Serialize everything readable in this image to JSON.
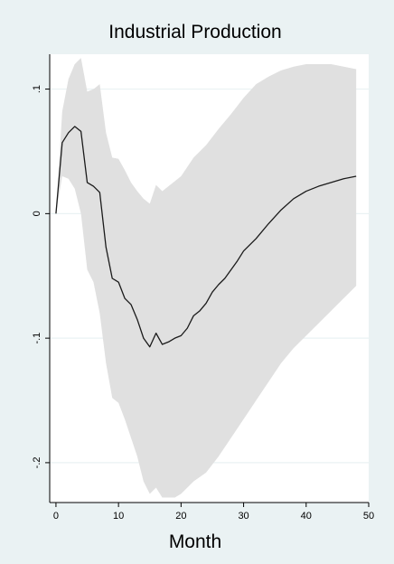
{
  "chart_data": {
    "type": "area",
    "title": "Industrial Production",
    "xlabel": "Month",
    "ylabel": "",
    "xlim": [
      -1,
      50
    ],
    "ylim": [
      -0.232,
      0.128
    ],
    "x_ticks": [
      0,
      10,
      20,
      30,
      40,
      50
    ],
    "x_tick_labels": [
      "0",
      "10",
      "20",
      "30",
      "40",
      "50"
    ],
    "y_ticks": [
      -0.2,
      -0.1,
      0,
      0.1
    ],
    "y_tick_labels": [
      "-.2",
      "-.1",
      "0",
      ".1"
    ],
    "grid": true,
    "legend": "none",
    "colors": {
      "background": "#eaf2f3",
      "plot_background": "#ffffff",
      "band": "#e0e0e0",
      "line": "#1a1a1a",
      "grid": "#eaf2f3"
    },
    "band": {
      "x": [
        0,
        1,
        2,
        3,
        4,
        5,
        6,
        7,
        8,
        9,
        10,
        11,
        12,
        13,
        14,
        15,
        16,
        17,
        18,
        19,
        20,
        22,
        24,
        26,
        28,
        30,
        32,
        34,
        36,
        38,
        40,
        42,
        44,
        46,
        48
      ],
      "upper": [
        0.0,
        0.082,
        0.108,
        0.12,
        0.125,
        0.098,
        0.1,
        0.104,
        0.065,
        0.045,
        0.044,
        0.035,
        0.025,
        0.018,
        0.012,
        0.008,
        0.023,
        0.018,
        0.022,
        0.026,
        0.03,
        0.045,
        0.055,
        0.068,
        0.08,
        0.093,
        0.104,
        0.11,
        0.115,
        0.118,
        0.12,
        0.12,
        0.12,
        0.118,
        0.116
      ],
      "lower": [
        0.0,
        0.03,
        0.028,
        0.02,
        0.0,
        -0.045,
        -0.055,
        -0.08,
        -0.12,
        -0.148,
        -0.152,
        -0.165,
        -0.18,
        -0.195,
        -0.215,
        -0.225,
        -0.22,
        -0.228,
        -0.228,
        -0.228,
        -0.225,
        -0.215,
        -0.208,
        -0.195,
        -0.18,
        -0.165,
        -0.15,
        -0.135,
        -0.12,
        -0.108,
        -0.098,
        -0.088,
        -0.078,
        -0.068,
        -0.058
      ]
    },
    "series": [
      {
        "x": [
          0,
          1,
          2,
          3,
          4,
          5,
          6,
          7,
          8,
          9,
          10,
          11,
          12,
          13,
          14,
          15,
          16,
          17,
          18,
          19,
          20,
          21,
          22,
          23,
          24,
          25,
          26,
          27,
          28,
          29,
          30,
          32,
          34,
          36,
          38,
          40,
          42,
          44,
          46,
          48
        ],
        "values": [
          0.0,
          0.057,
          0.065,
          0.07,
          0.066,
          0.025,
          0.022,
          0.017,
          -0.027,
          -0.052,
          -0.055,
          -0.068,
          -0.073,
          -0.085,
          -0.1,
          -0.107,
          -0.096,
          -0.105,
          -0.103,
          -0.1,
          -0.098,
          -0.092,
          -0.082,
          -0.078,
          -0.072,
          -0.063,
          -0.057,
          -0.052,
          -0.045,
          -0.038,
          -0.03,
          -0.02,
          -0.008,
          0.003,
          0.012,
          0.018,
          0.022,
          0.025,
          0.028,
          0.03
        ]
      }
    ]
  }
}
